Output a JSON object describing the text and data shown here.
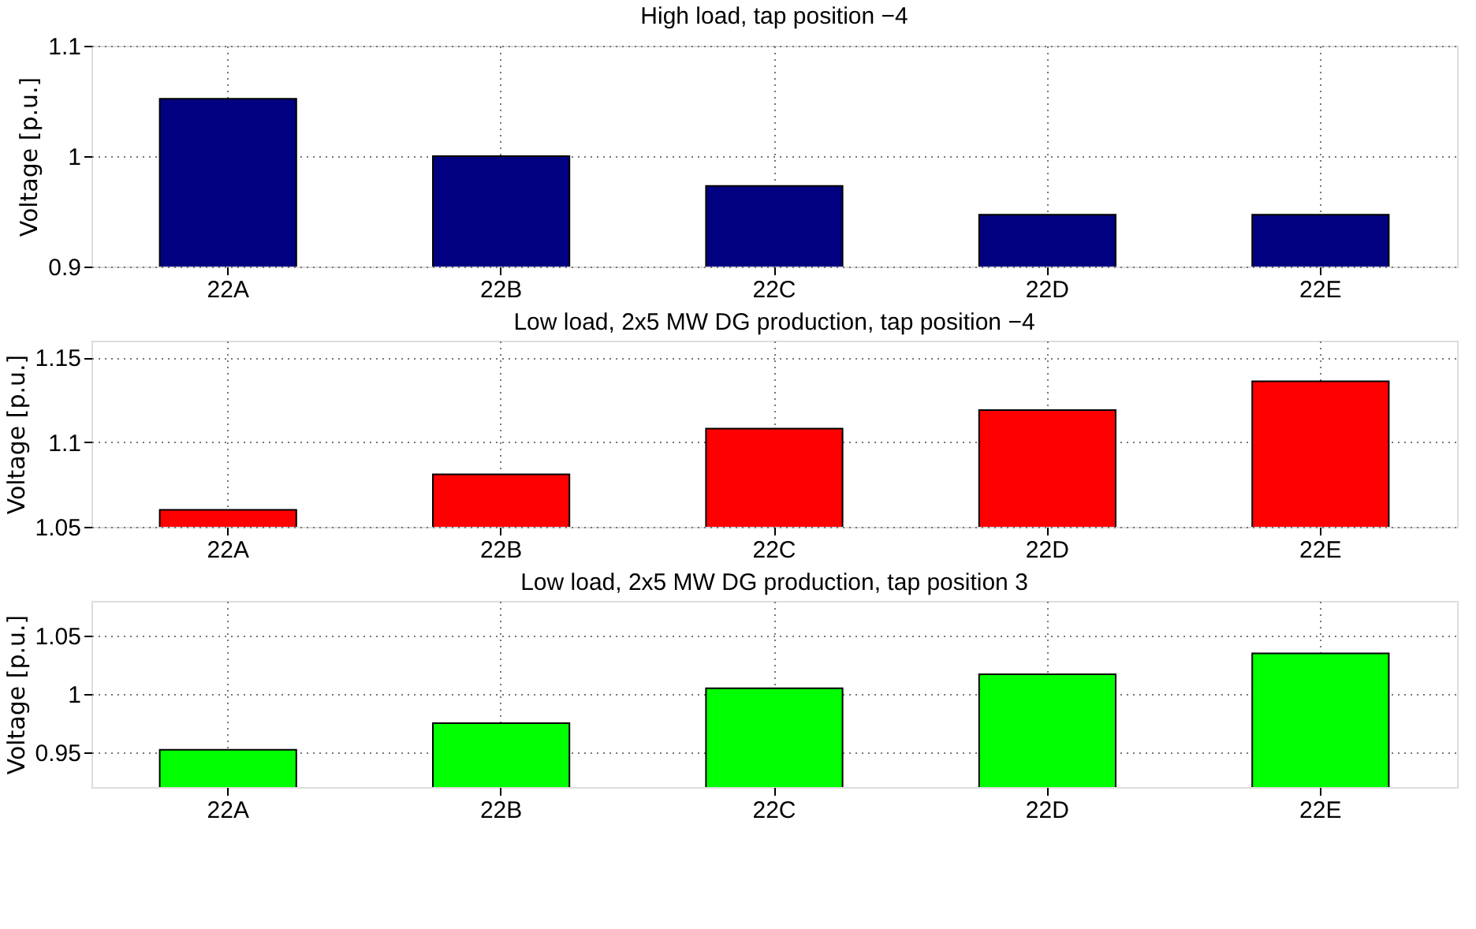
{
  "chart_data": [
    {
      "type": "bar",
      "title": "High load, tap position −4",
      "ylabel": "Voltage [p.u.]",
      "categories": [
        "22A",
        "22B",
        "22C",
        "22D",
        "22E"
      ],
      "values": [
        1.052,
        1.0,
        0.973,
        0.947,
        0.947
      ],
      "color": "#000080",
      "ylim": [
        0.9,
        1.1
      ],
      "yticks": [
        0.9,
        1,
        1.1
      ],
      "grid": true
    },
    {
      "type": "bar",
      "title": "Low load, 2x5 MW DG production, tap position −4",
      "ylabel": "Voltage [p.u.]",
      "categories": [
        "22A",
        "22B",
        "22C",
        "22D",
        "22E"
      ],
      "values": [
        1.06,
        1.081,
        1.108,
        1.119,
        1.136
      ],
      "color": "#ff0000",
      "ylim": [
        1.05,
        1.16
      ],
      "yticks": [
        1.05,
        1.1,
        1.15
      ],
      "grid": true
    },
    {
      "type": "bar",
      "title": "Low load, 2x5 MW DG production, tap position 3",
      "ylabel": "Voltage [p.u.]",
      "categories": [
        "22A",
        "22B",
        "22C",
        "22D",
        "22E"
      ],
      "values": [
        0.952,
        0.975,
        1.005,
        1.017,
        1.035
      ],
      "color": "#00ff00",
      "ylim": [
        0.92,
        1.08
      ],
      "yticks": [
        0.95,
        1,
        1.05
      ],
      "grid": true
    }
  ]
}
